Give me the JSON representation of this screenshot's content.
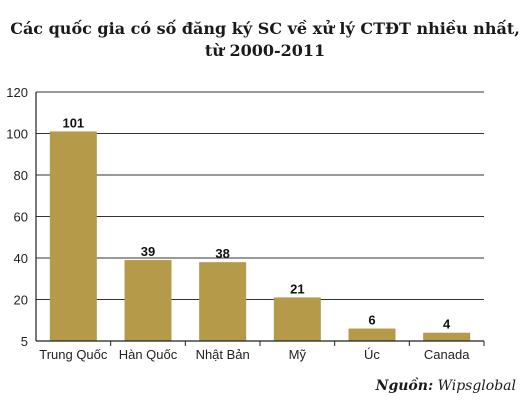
{
  "chart_data": {
    "type": "bar",
    "title_line1": "Các quốc gia có số đăng ký SC về xử lý CTĐT nhiều nhất,",
    "title_line2": "từ 2000-2011",
    "categories": [
      "Trung Quốc",
      "Hàn Quốc",
      "Nhật Bản",
      "Mỹ",
      "Úc",
      "Canada"
    ],
    "values": [
      101,
      39,
      38,
      21,
      6,
      4
    ],
    "yticks": [
      "5",
      "20",
      "40",
      "60",
      "80",
      "100",
      "120"
    ],
    "ylim": [
      0,
      120
    ],
    "grid": true,
    "bar_color": "#b59a4a",
    "xlabel": "",
    "ylabel": ""
  },
  "source": {
    "label": "Nguồn:",
    "value": "Wipsglobal"
  }
}
